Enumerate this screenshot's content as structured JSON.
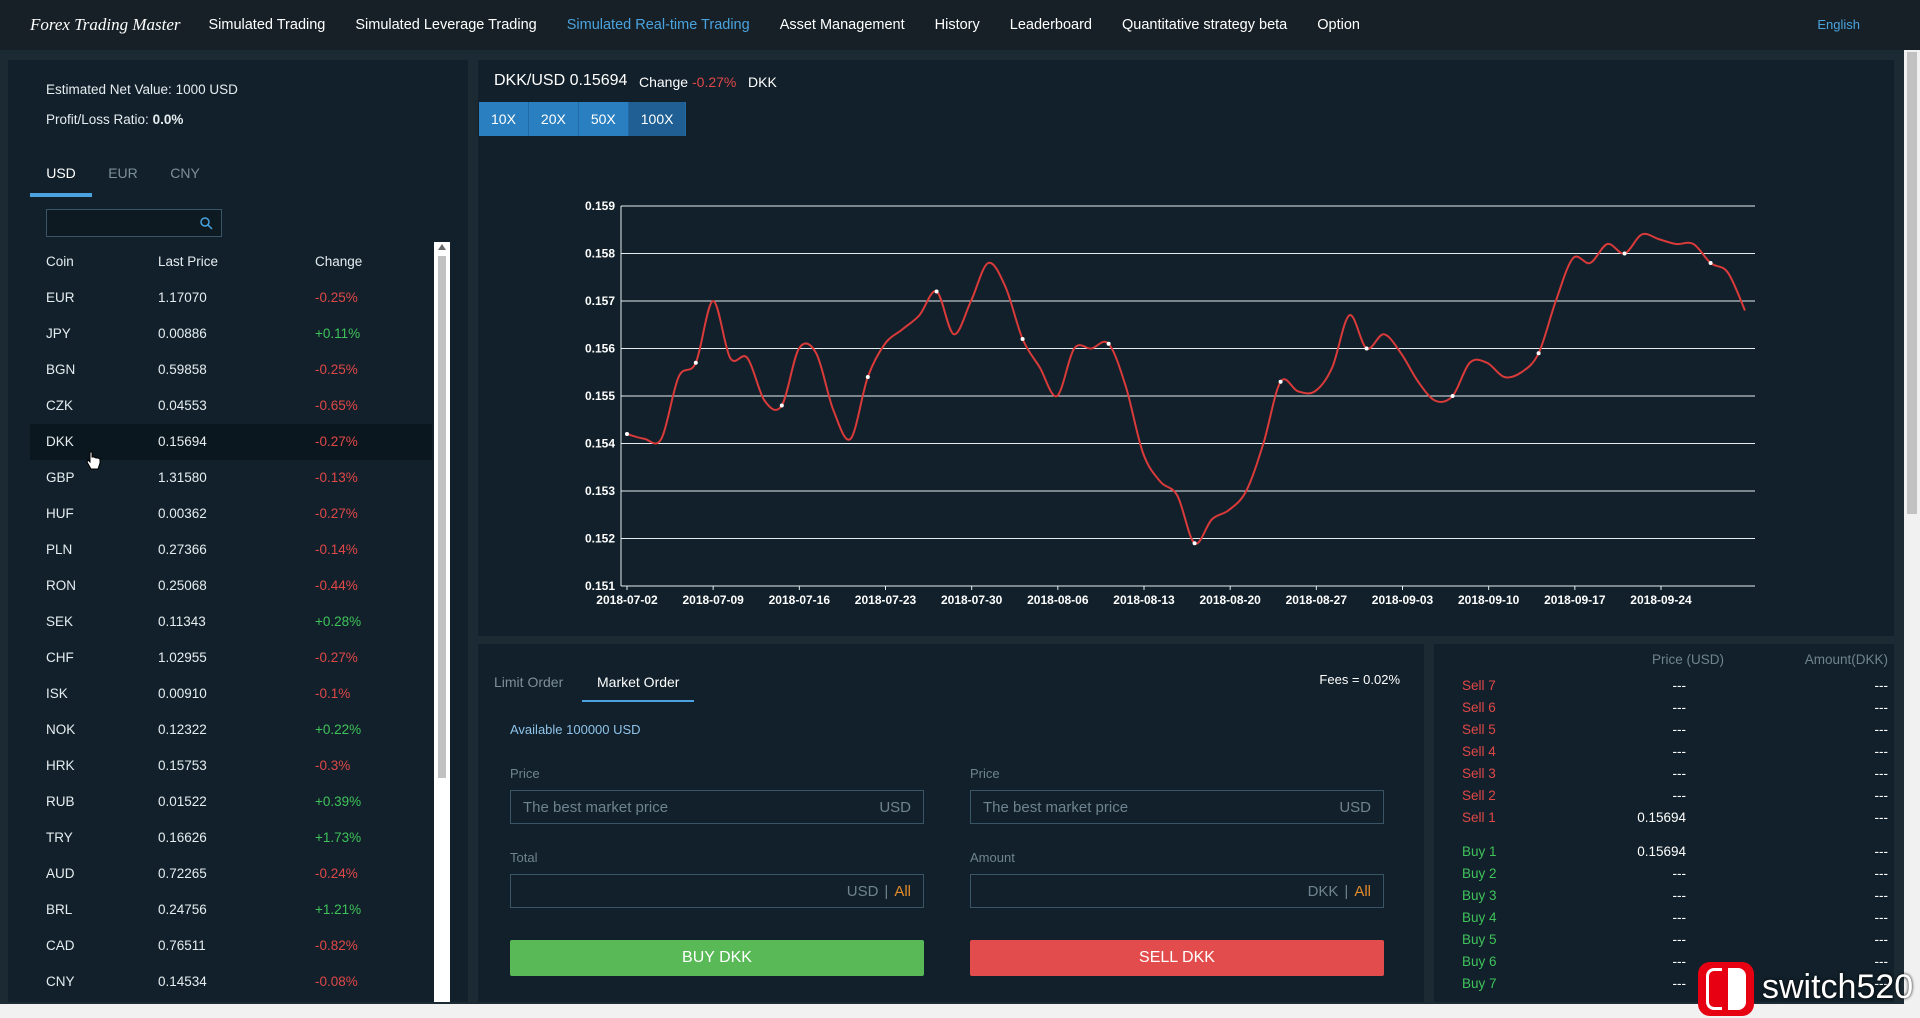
{
  "nav": {
    "brand": "Forex Trading Master",
    "items": [
      {
        "label": "Simulated Trading",
        "active": false
      },
      {
        "label": "Simulated Leverage Trading",
        "active": false
      },
      {
        "label": "Simulated Real-time Trading",
        "active": true
      },
      {
        "label": "Asset Management",
        "active": false
      },
      {
        "label": "History",
        "active": false
      },
      {
        "label": "Leaderboard",
        "active": false
      },
      {
        "label": "Quantitative strategy beta",
        "active": false
      },
      {
        "label": "Option",
        "active": false
      }
    ],
    "language": "English"
  },
  "account": {
    "net_value_label": "Estimated Net Value:",
    "net_value": "1000 USD",
    "pl_label": "Profit/Loss Ratio:",
    "pl_value": "0.0%"
  },
  "currency_tabs": [
    "USD",
    "EUR",
    "CNY"
  ],
  "active_currency": "USD",
  "search": {
    "placeholder": ""
  },
  "coin_table": {
    "headers": [
      "Coin",
      "Last Price",
      "Change"
    ],
    "selected": "DKK",
    "rows": [
      {
        "coin": "EUR",
        "price": "1.17070",
        "change": "-0.25%",
        "dir": "neg"
      },
      {
        "coin": "JPY",
        "price": "0.00886",
        "change": "+0.11%",
        "dir": "pos"
      },
      {
        "coin": "BGN",
        "price": "0.59858",
        "change": "-0.25%",
        "dir": "neg"
      },
      {
        "coin": "CZK",
        "price": "0.04553",
        "change": "-0.65%",
        "dir": "neg"
      },
      {
        "coin": "DKK",
        "price": "0.15694",
        "change": "-0.27%",
        "dir": "neg"
      },
      {
        "coin": "GBP",
        "price": "1.31580",
        "change": "-0.13%",
        "dir": "neg"
      },
      {
        "coin": "HUF",
        "price": "0.00362",
        "change": "-0.27%",
        "dir": "neg"
      },
      {
        "coin": "PLN",
        "price": "0.27366",
        "change": "-0.14%",
        "dir": "neg"
      },
      {
        "coin": "RON",
        "price": "0.25068",
        "change": "-0.44%",
        "dir": "neg"
      },
      {
        "coin": "SEK",
        "price": "0.11343",
        "change": "+0.28%",
        "dir": "pos"
      },
      {
        "coin": "CHF",
        "price": "1.02955",
        "change": "-0.27%",
        "dir": "neg"
      },
      {
        "coin": "ISK",
        "price": "0.00910",
        "change": "-0.1%",
        "dir": "neg"
      },
      {
        "coin": "NOK",
        "price": "0.12322",
        "change": "+0.22%",
        "dir": "pos"
      },
      {
        "coin": "HRK",
        "price": "0.15753",
        "change": "-0.3%",
        "dir": "neg"
      },
      {
        "coin": "RUB",
        "price": "0.01522",
        "change": "+0.39%",
        "dir": "pos"
      },
      {
        "coin": "TRY",
        "price": "0.16626",
        "change": "+1.73%",
        "dir": "pos"
      },
      {
        "coin": "AUD",
        "price": "0.72265",
        "change": "-0.24%",
        "dir": "neg"
      },
      {
        "coin": "BRL",
        "price": "0.24756",
        "change": "+1.21%",
        "dir": "pos"
      },
      {
        "coin": "CAD",
        "price": "0.76511",
        "change": "-0.82%",
        "dir": "neg"
      },
      {
        "coin": "CNY",
        "price": "0.14534",
        "change": "-0.08%",
        "dir": "neg"
      }
    ]
  },
  "pair": {
    "title": "DKK/USD 0.15694",
    "change_label": "Change",
    "change_value": "-0.27%",
    "coin": "DKK"
  },
  "leverage": {
    "options": [
      "10X",
      "20X",
      "50X",
      "100X"
    ],
    "active": "100X"
  },
  "chart_data": {
    "type": "line",
    "x_labels": [
      "2018-07-02",
      "2018-07-09",
      "2018-07-16",
      "2018-07-23",
      "2018-07-30",
      "2018-08-06",
      "2018-08-13",
      "2018-08-20",
      "2018-08-27",
      "2018-09-03",
      "2018-09-10",
      "2018-09-17",
      "2018-09-24"
    ],
    "x": [
      0,
      1,
      2,
      3,
      4,
      5,
      6,
      7,
      8,
      9,
      10,
      11,
      12,
      13,
      14,
      15,
      16,
      17,
      18,
      19,
      20,
      21,
      22,
      23,
      24,
      25,
      26,
      27,
      28,
      29,
      30,
      31,
      32,
      33,
      34,
      35,
      36,
      37,
      38,
      39,
      40,
      41,
      42,
      43,
      44,
      45,
      46,
      47,
      48,
      49,
      50,
      51,
      52,
      53,
      54,
      55,
      56,
      57,
      58,
      59,
      60,
      61,
      62,
      63,
      64,
      65
    ],
    "values": [
      0.1542,
      0.1541,
      0.1541,
      0.1554,
      0.1557,
      0.157,
      0.1558,
      0.1558,
      0.1549,
      0.1548,
      0.156,
      0.1559,
      0.1547,
      0.1541,
      0.1554,
      0.1561,
      0.1564,
      0.1567,
      0.1572,
      0.1563,
      0.157,
      0.1578,
      0.1573,
      0.1562,
      0.1556,
      0.155,
      0.156,
      0.156,
      0.1561,
      0.1552,
      0.1538,
      0.1532,
      0.1529,
      0.1519,
      0.1524,
      0.1526,
      0.153,
      0.154,
      0.1553,
      0.1551,
      0.1551,
      0.1556,
      0.1567,
      0.156,
      0.1563,
      0.1559,
      0.1553,
      0.1549,
      0.155,
      0.1557,
      0.1557,
      0.1554,
      0.1555,
      0.1559,
      0.157,
      0.1579,
      0.1578,
      0.1582,
      0.158,
      0.1584,
      0.1583,
      0.1582,
      0.1582,
      0.1578,
      0.1576,
      0.1568
    ],
    "markers": [
      0,
      4,
      9,
      14,
      18,
      23,
      28,
      33,
      38,
      43,
      48,
      53,
      58,
      63
    ],
    "ylim": [
      0.151,
      0.159
    ],
    "y_ticks": [
      "0.151",
      "0.152",
      "0.153",
      "0.154",
      "0.155",
      "0.156",
      "0.157",
      "0.158",
      "0.159"
    ],
    "grid": true,
    "line_color": "#d93a3a",
    "grid_color": "#e6edf0"
  },
  "order": {
    "tabs": [
      "Limit Order",
      "Market Order"
    ],
    "active_tab": "Market Order",
    "fees": "Fees = 0.02%",
    "available": "Available 100000 USD",
    "buy": {
      "price_label": "Price",
      "price_placeholder": "The best market price",
      "price_unit": "USD",
      "total_label": "Total",
      "total_unit": "USD",
      "all_label": "All",
      "button": "BUY DKK"
    },
    "sell": {
      "price_label": "Price",
      "price_placeholder": "The best market price",
      "price_unit": "USD",
      "amount_label": "Amount",
      "amount_unit": "DKK",
      "all_label": "All",
      "button": "SELL DKK"
    }
  },
  "order_book": {
    "price_header": "Price (USD)",
    "amount_header": "Amount(DKK)",
    "sells": [
      {
        "label": "Sell 7",
        "price": "---",
        "amount": "---"
      },
      {
        "label": "Sell 6",
        "price": "---",
        "amount": "---"
      },
      {
        "label": "Sell 5",
        "price": "---",
        "amount": "---"
      },
      {
        "label": "Sell 4",
        "price": "---",
        "amount": "---"
      },
      {
        "label": "Sell 3",
        "price": "---",
        "amount": "---"
      },
      {
        "label": "Sell 2",
        "price": "---",
        "amount": "---"
      },
      {
        "label": "Sell 1",
        "price": "0.15694",
        "amount": "---"
      }
    ],
    "buys": [
      {
        "label": "Buy 1",
        "price": "0.15694",
        "amount": "---"
      },
      {
        "label": "Buy 2",
        "price": "---",
        "amount": "---"
      },
      {
        "label": "Buy 3",
        "price": "---",
        "amount": "---"
      },
      {
        "label": "Buy 4",
        "price": "---",
        "amount": "---"
      },
      {
        "label": "Buy 5",
        "price": "---",
        "amount": "---"
      },
      {
        "label": "Buy 6",
        "price": "---",
        "amount": "---"
      },
      {
        "label": "Buy 7",
        "price": "---",
        "amount": "---"
      }
    ]
  },
  "watermark": {
    "text": "switch520"
  }
}
